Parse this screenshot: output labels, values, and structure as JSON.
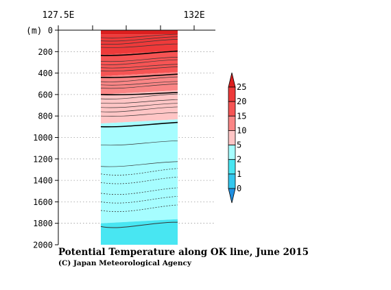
{
  "chart_data": {
    "type": "heatmap",
    "title": "Potential Temperature along OK line, June 2015",
    "credit": "(C) Japan Meteorological Agency",
    "xlabel": "",
    "ylabel": "(m)",
    "x_ticks": [
      "127.5E",
      "132E"
    ],
    "y_ticks": [
      "0",
      "200",
      "400",
      "600",
      "800",
      "1000",
      "1200",
      "1400",
      "1600",
      "1800",
      "2000"
    ],
    "ylim": [
      2000,
      0
    ],
    "y_scale": "depth, increasing downward",
    "grid": "dotted horizontal lines",
    "colorbar": {
      "labels": [
        "0",
        "1",
        "2",
        "5",
        "10",
        "15",
        "20",
        "25"
      ],
      "levels": [
        -1,
        0,
        1,
        2,
        5,
        10,
        15,
        20,
        25,
        30
      ],
      "colors": [
        "#1f8fe0",
        "#33c7ee",
        "#48e6f2",
        "#a6fdff",
        "#ffc5c5",
        "#fa8686",
        "#f65454",
        "#ee3a3a",
        "#dc1f1f"
      ]
    },
    "section_layers": [
      {
        "from_depth": 0,
        "to_depth": 40,
        "temp_range": "25+",
        "color": "#dc1f1f"
      },
      {
        "from_depth": 40,
        "to_depth": 230,
        "temp_range": "20-25",
        "color": "#ee3a3a"
      },
      {
        "from_depth": 230,
        "to_depth": 430,
        "temp_range": "15-20",
        "color": "#f65454"
      },
      {
        "from_depth": 430,
        "to_depth": 600,
        "temp_range": "10-15",
        "color": "#fa8686"
      },
      {
        "from_depth": 600,
        "to_depth": 870,
        "temp_range": "5-10",
        "color": "#ffc5c5"
      },
      {
        "from_depth": 870,
        "to_depth": 1800,
        "temp_range": "2-5",
        "color": "#a6fdff"
      },
      {
        "from_depth": 1800,
        "to_depth": 2000,
        "temp_range": "1-2",
        "color": "#48e6f2"
      }
    ],
    "isotherm_20_depth": [
      235,
      195
    ],
    "isotherm_15_depth": [
      440,
      410
    ],
    "isotherm_10_depth": [
      600,
      580
    ],
    "isotherm_5_depth": [
      900,
      860
    ],
    "isotherm_2_depth": [
      1830,
      1790
    ]
  }
}
